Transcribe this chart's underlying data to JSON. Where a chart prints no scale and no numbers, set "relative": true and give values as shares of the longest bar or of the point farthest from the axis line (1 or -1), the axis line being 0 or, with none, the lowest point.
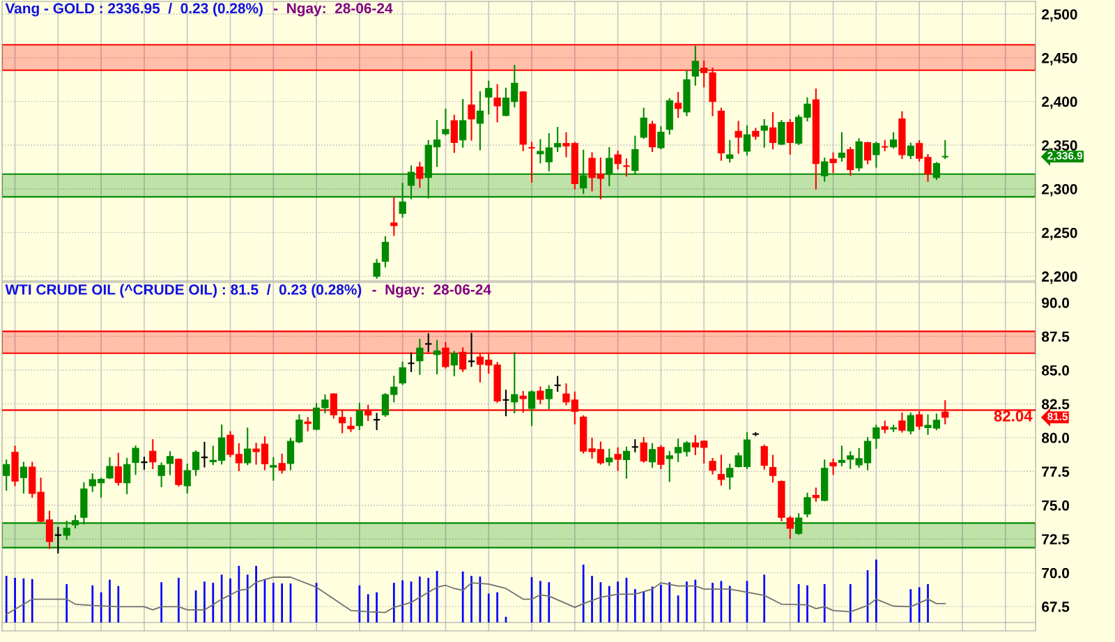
{
  "chart_data": [
    {
      "type": "candlestick",
      "title": "Vang - GOLD : 2336.95  /  0.23 (0.28%)",
      "subtitle": "-  Ngay:  28-06-24",
      "categories": [
        null,
        null,
        null,
        null,
        null,
        null,
        null,
        null,
        null,
        null,
        null,
        null,
        null,
        null,
        null,
        null,
        null,
        null,
        null,
        null,
        null,
        null,
        null,
        null,
        null,
        null,
        null,
        null,
        null,
        null,
        null,
        null,
        null,
        null,
        null,
        null,
        null,
        null,
        null,
        null,
        null,
        null,
        null,
        null,
        null,
        null,
        null,
        null,
        null,
        null,
        null,
        null,
        null,
        null,
        null,
        null,
        null,
        null,
        null,
        null,
        null,
        null,
        null,
        null,
        null,
        null,
        null,
        null,
        null,
        null,
        null,
        null,
        null,
        null,
        null,
        null,
        null,
        null,
        null,
        null,
        null,
        null,
        null,
        null,
        null,
        null,
        null,
        null,
        null,
        null,
        null,
        null,
        null,
        null,
        null,
        null,
        null,
        null,
        null,
        null,
        null,
        null,
        null,
        null,
        null,
        null,
        null,
        null,
        null,
        null,
        null,
        null,
        null,
        null,
        null,
        null,
        null,
        null,
        null,
        null
      ],
      "ohlc": [
        null,
        null,
        null,
        null,
        null,
        null,
        null,
        null,
        null,
        null,
        null,
        null,
        null,
        null,
        null,
        null,
        null,
        null,
        null,
        null,
        null,
        null,
        null,
        null,
        null,
        null,
        null,
        null,
        null,
        null,
        null,
        null,
        null,
        null,
        null,
        null,
        null,
        null,
        null,
        null,
        null,
        null,
        null,
        [
          2200,
          2219,
          2198,
          2215
        ],
        [
          2217,
          2245,
          2211,
          2239
        ],
        [
          2261,
          2290,
          2247,
          2258
        ],
        [
          2272,
          2306,
          2268,
          2285
        ],
        [
          2304,
          2326,
          2289,
          2319
        ],
        [
          2325,
          2330,
          2302,
          2312
        ],
        [
          2313,
          2355,
          2290,
          2350
        ],
        [
          2348,
          2378,
          2326,
          2356
        ],
        [
          2363,
          2391,
          2362,
          2368
        ],
        [
          2378,
          2384,
          2342,
          2353
        ],
        [
          2356,
          2402,
          2348,
          2378
        ],
        [
          2396,
          2457,
          2356,
          2380
        ],
        [
          2375,
          2411,
          2345,
          2389
        ],
        [
          2405,
          2423,
          2386,
          2415
        ],
        [
          2404,
          2419,
          2377,
          2395
        ],
        [
          2384,
          2415,
          2384,
          2404
        ],
        [
          2400,
          2441,
          2394,
          2421
        ],
        [
          2411,
          2411,
          2344,
          2351
        ],
        [
          2347,
          2353,
          2308,
          2347
        ],
        [
          2340,
          2356,
          2330,
          2343
        ],
        [
          2331,
          2363,
          2321,
          2347
        ],
        [
          2348,
          2370,
          2343,
          2352
        ],
        [
          2352,
          2364,
          2337,
          2349
        ],
        [
          2352,
          2353,
          2300,
          2306
        ],
        [
          2301,
          2344,
          2295,
          2315
        ],
        [
          2335,
          2341,
          2298,
          2313
        ],
        [
          2317,
          2335,
          2289,
          2312
        ],
        [
          2317,
          2347,
          2304,
          2335
        ],
        [
          2339,
          2343,
          2323,
          2329
        ],
        [
          2326,
          2334,
          2315,
          2326
        ],
        [
          2321,
          2360,
          2317,
          2345
        ],
        [
          2359,
          2392,
          2358,
          2381
        ],
        [
          2374,
          2377,
          2343,
          2348
        ],
        [
          2347,
          2371,
          2346,
          2365
        ],
        [
          2368,
          2403,
          2363,
          2401
        ],
        [
          2398,
          2410,
          2382,
          2392
        ],
        [
          2388,
          2435,
          2384,
          2425
        ],
        [
          2429,
          2463,
          2419,
          2446
        ],
        [
          2438,
          2446,
          2417,
          2433
        ],
        [
          2433,
          2438,
          2384,
          2400
        ],
        [
          2389,
          2392,
          2333,
          2341
        ],
        [
          2335,
          2355,
          2331,
          2339
        ],
        [
          2366,
          2377,
          2341,
          2359
        ],
        [
          2343,
          2372,
          2339,
          2362
        ],
        [
          2366,
          2369,
          2357,
          2360
        ],
        [
          2367,
          2379,
          2348,
          2372
        ],
        [
          2370,
          2387,
          2346,
          2353
        ],
        [
          2351,
          2378,
          2351,
          2376
        ],
        [
          2376,
          2379,
          2340,
          2353
        ],
        [
          2352,
          2384,
          2351,
          2382
        ],
        [
          2382,
          2404,
          2378,
          2397
        ],
        [
          2402,
          2414,
          2300,
          2329
        ],
        [
          2315,
          2335,
          2309,
          2331
        ],
        [
          2334,
          2341,
          2319,
          2330
        ],
        [
          2336,
          2364,
          2332,
          2341
        ],
        [
          2345,
          2347,
          2316,
          2322
        ],
        [
          2324,
          2357,
          2321,
          2354
        ],
        [
          2353,
          2353,
          2329,
          2333
        ],
        [
          2339,
          2353,
          2325,
          2352
        ],
        [
          2348,
          2355,
          2344,
          2348
        ],
        [
          2348,
          2364,
          2347,
          2356
        ],
        [
          2380,
          2388,
          2335,
          2339
        ],
        [
          2338,
          2352,
          2335,
          2349
        ],
        [
          2352,
          2355,
          2332,
          2335
        ],
        [
          2336,
          2339,
          2309,
          2317
        ],
        [
          2313,
          2330,
          2311,
          2329
        ],
        [
          2336.9,
          2355,
          2335,
          2336.9
        ],
        null,
        null,
        null,
        null,
        null,
        null,
        null,
        null,
        null,
        null
      ],
      "colors": [
        null,
        null,
        null,
        null,
        null,
        null,
        null,
        null,
        null,
        null,
        null,
        null,
        null,
        null,
        null,
        null,
        null,
        null,
        null,
        null,
        null,
        null,
        null,
        null,
        null,
        null,
        null,
        null,
        null,
        null,
        null,
        null,
        null,
        null,
        null,
        null,
        null,
        null,
        null,
        null,
        null,
        null,
        null,
        "#008a00",
        "#008a00",
        "#ff0000",
        "#008a00",
        "#008a00",
        "#ff0000",
        "#008a00",
        "#008a00",
        "#008a00",
        "#ff0000",
        "#008a00",
        "#ff0000",
        "#008a00",
        "#008a00",
        "#ff0000",
        "#008a00",
        "#008a00",
        "#ff0000",
        "#ff0000",
        "#008a00",
        "#008a00",
        "#008a00",
        "#ff0000",
        "#ff0000",
        "#008a00",
        "#ff0000",
        "#ff0000",
        "#008a00",
        "#ff0000",
        "#ff0000",
        "#008a00",
        "#008a00",
        "#ff0000",
        "#008a00",
        "#008a00",
        "#ff0000",
        "#008a00",
        "#008a00",
        "#ff0000",
        "#ff0000",
        "#ff0000",
        "#008a00",
        "#ff0000",
        "#008a00",
        "#ff0000",
        "#008a00",
        "#ff0000",
        "#008a00",
        "#ff0000",
        "#008a00",
        "#008a00",
        "#ff0000",
        "#008a00",
        "#ff0000",
        "#008a00",
        "#ff0000",
        "#008a00",
        "#ff0000",
        "#008a00",
        "#ff0000",
        "#008a00",
        "#ff0000",
        "#008a00",
        "#ff0000",
        "#ff0000",
        "#008a00",
        "#008a00",
        null,
        null,
        null,
        null,
        null,
        null,
        null,
        null,
        null,
        null
      ],
      "ylim": [
        2194.7,
        2514.5
      ],
      "yticks": [
        {
          "value": 2200,
          "label": "2,200"
        },
        {
          "value": 2250,
          "label": "2,250"
        },
        {
          "value": 2300,
          "label": "2,300"
        },
        {
          "value": 2350,
          "label": "2,350"
        },
        {
          "value": 2400,
          "label": "2,400"
        },
        {
          "value": 2450,
          "label": "2,450"
        },
        {
          "value": 2500,
          "label": "2,500"
        }
      ],
      "grid": true,
      "tick_labels": "y",
      "bands": [
        {
          "axis": "y",
          "from": 2435.7,
          "to": 2464.8,
          "color": "#ff0000"
        },
        {
          "axis": "y",
          "from": 2290.9,
          "to": 2316.9,
          "color": "#008a00"
        }
      ],
      "annotations": [
        "2,336.9"
      ]
    },
    {
      "type": "candlestick",
      "title": "WTI CRUDE OIL (^CRUDE OIL) : 81.5  /  0.23 (0.28%)",
      "subtitle": "-  Ngay:  28-06-24",
      "categories": [
        null,
        null,
        null,
        null,
        null,
        null,
        null,
        null,
        null,
        null,
        null,
        null,
        null,
        null,
        null,
        null,
        null,
        null,
        null,
        null,
        null,
        null,
        null,
        null,
        null,
        null,
        null,
        null,
        null,
        null,
        null,
        null,
        null,
        null,
        null,
        null,
        null,
        null,
        null,
        null,
        null,
        null,
        null,
        null,
        null,
        null,
        null,
        null,
        null,
        null,
        null,
        null,
        null,
        null,
        null,
        null,
        null,
        null,
        null,
        null,
        null,
        null,
        null,
        null,
        null,
        null,
        null,
        null,
        null,
        null,
        null,
        null,
        null,
        null,
        null,
        null,
        null,
        null,
        null,
        null,
        null,
        null,
        null,
        null,
        null,
        null,
        null,
        null,
        null,
        null,
        null,
        null,
        null,
        null,
        null,
        null,
        null,
        null,
        null,
        null,
        null,
        null,
        null,
        null,
        null,
        null,
        null,
        null,
        null,
        null,
        null,
        null,
        null,
        null,
        null,
        null,
        null,
        null,
        null,
        null
      ],
      "ohlc": [
        [
          77.2,
          78.33,
          76.13,
          78.02
        ],
        [
          78.92,
          79.35,
          76.47,
          76.78
        ],
        [
          77.04,
          78.16,
          75.92,
          77.82
        ],
        [
          77.82,
          78.16,
          75.61,
          75.87
        ],
        [
          75.96,
          76.99,
          73.8,
          73.8
        ],
        [
          73.92,
          74.54,
          71.82,
          72.31
        ],
        [
          72.79,
          73.34,
          71.48,
          72.79
        ],
        [
          72.77,
          73.8,
          72.48,
          73.3
        ],
        [
          73.55,
          74.23,
          73.34,
          73.86
        ],
        [
          74.1,
          76.65,
          73.63,
          76.21
        ],
        [
          76.44,
          77.3,
          76.04,
          76.89
        ],
        [
          76.65,
          76.99,
          75.61,
          76.92
        ],
        [
          77.02,
          78.5,
          76.99,
          77.88
        ],
        [
          77.85,
          78.83,
          76.51,
          76.68
        ],
        [
          76.65,
          78.45,
          75.87,
          78.02
        ],
        [
          78.16,
          79.37,
          77.3,
          79.21
        ],
        [
          78.18,
          78.54,
          77.68,
          78.18
        ],
        [
          79.0,
          79.83,
          77.73,
          78.2
        ],
        [
          77.2,
          78.11,
          76.39,
          77.94
        ],
        [
          78.09,
          78.95,
          77.28,
          78.61
        ],
        [
          78.4,
          78.4,
          76.44,
          76.52
        ],
        [
          76.44,
          78.02,
          75.92,
          77.57
        ],
        [
          77.64,
          79.0,
          77.23,
          78.92
        ],
        [
          78.54,
          79.64,
          77.85,
          78.54
        ],
        [
          78.21,
          79.35,
          78.02,
          78.32
        ],
        [
          78.32,
          80.92,
          78.07,
          79.99
        ],
        [
          80.18,
          80.43,
          78.61,
          78.76
        ],
        [
          78.76,
          79.54,
          77.57,
          78.14
        ],
        [
          78.14,
          80.69,
          78.02,
          79.16
        ],
        [
          79.16,
          79.57,
          78.06,
          78.97
        ],
        [
          79.52,
          80.04,
          77.64,
          78.06
        ],
        [
          77.82,
          78.5,
          76.87,
          77.94
        ],
        [
          78.09,
          78.76,
          77.39,
          77.59
        ],
        [
          78.09,
          79.95,
          77.64,
          79.73
        ],
        [
          79.69,
          81.67,
          79.64,
          81.31
        ],
        [
          81.16,
          81.47,
          80.52,
          81.04
        ],
        [
          80.61,
          82.53,
          80.61,
          82.19
        ],
        [
          82.21,
          83.15,
          81.86,
          82.79
        ],
        [
          83.24,
          83.24,
          81.47,
          81.69
        ],
        [
          81.5,
          81.98,
          80.38,
          81.09
        ],
        [
          80.85,
          81.47,
          80.47,
          80.66
        ],
        [
          80.88,
          82.53,
          80.61,
          81.97
        ],
        [
          81.97,
          82.38,
          81.29,
          81.67
        ],
        [
          81.33,
          81.78,
          80.61,
          81.33
        ],
        [
          81.69,
          83.24,
          81.6,
          83.19
        ],
        [
          83.19,
          84.53,
          82.67,
          83.74
        ],
        [
          84.05,
          85.57,
          83.95,
          85.17
        ],
        [
          85.5,
          86.25,
          84.91,
          85.5
        ],
        [
          85.69,
          87.27,
          84.7,
          86.63
        ],
        [
          86.94,
          87.67,
          86.37,
          86.94
        ],
        [
          86.15,
          87.18,
          84.74,
          86.43
        ],
        [
          86.63,
          87.01,
          85.17,
          85.26
        ],
        [
          85.38,
          86.37,
          84.6,
          86.24
        ],
        [
          86.32,
          86.63,
          84.91,
          85.08
        ],
        [
          85.65,
          87.7,
          85.29,
          85.65
        ],
        [
          85.98,
          86.15,
          84.14,
          85.43
        ],
        [
          85.74,
          86.2,
          84.79,
          85.38
        ],
        [
          85.38,
          85.55,
          82.64,
          82.72
        ],
        [
          82.79,
          83.5,
          81.64,
          82.79
        ],
        [
          82.64,
          86.29,
          81.85,
          83.19
        ],
        [
          83.07,
          83.4,
          81.9,
          82.88
        ],
        [
          82.16,
          83.45,
          80.92,
          83.4
        ],
        [
          83.45,
          83.74,
          82.53,
          82.84
        ],
        [
          82.88,
          83.83,
          82.16,
          83.58
        ],
        [
          83.88,
          84.51,
          83.45,
          83.88
        ],
        [
          83.24,
          83.96,
          82.45,
          82.64
        ],
        [
          82.79,
          83.36,
          81.04,
          81.95
        ],
        [
          81.52,
          81.6,
          78.88,
          79.0
        ],
        [
          79.18,
          79.95,
          78.5,
          78.97
        ],
        [
          79.12,
          79.66,
          78.06,
          78.14
        ],
        [
          78.2,
          79.12,
          77.97,
          78.5
        ],
        [
          78.76,
          79.23,
          77.59,
          78.4
        ],
        [
          78.37,
          79.28,
          77.02,
          79.0
        ],
        [
          79.31,
          79.83,
          78.97,
          79.31
        ],
        [
          79.62,
          80.0,
          78.2,
          78.28
        ],
        [
          78.2,
          79.54,
          77.82,
          79.12
        ],
        [
          79.28,
          79.4,
          77.73,
          78.02
        ],
        [
          78.45,
          78.95,
          76.78,
          78.66
        ],
        [
          78.88,
          79.88,
          78.25,
          79.28
        ],
        [
          78.97,
          79.69,
          78.66,
          79.62
        ],
        [
          79.62,
          80.14,
          78.76,
          79.31
        ],
        [
          79.74,
          79.74,
          78.14,
          79.28
        ],
        [
          78.25,
          78.45,
          77.33,
          77.59
        ],
        [
          77.28,
          78.68,
          76.51,
          76.9
        ],
        [
          77.08,
          78.02,
          76.21,
          77.73
        ],
        [
          77.85,
          78.83,
          77.85,
          78.66
        ],
        [
          77.85,
          80.35,
          77.73,
          79.83
        ],
        [
          80.26,
          80.35,
          80.17,
          80.26
        ],
        [
          79.35,
          79.43,
          77.68,
          77.94
        ],
        [
          77.8,
          78.68,
          76.73,
          77.2
        ],
        [
          76.77,
          76.78,
          73.86,
          74.1
        ],
        [
          74.06,
          74.15,
          72.56,
          73.29
        ],
        [
          72.91,
          74.35,
          72.86,
          74.06
        ],
        [
          74.35,
          75.87,
          74.15,
          75.56
        ],
        [
          75.73,
          76.25,
          75.3,
          75.56
        ],
        [
          75.35,
          78.33,
          75.35,
          77.73
        ],
        [
          78.14,
          78.4,
          77.3,
          77.9
        ],
        [
          78.16,
          79.35,
          77.94,
          78.32
        ],
        [
          78.4,
          78.94,
          77.73,
          78.66
        ],
        [
          77.99,
          79.18,
          77.82,
          78.45
        ],
        [
          78.14,
          80.0,
          77.64,
          79.73
        ],
        [
          79.95,
          80.9,
          79.23,
          80.73
        ],
        [
          80.81,
          81.21,
          80.38,
          80.61
        ],
        [
          80.64,
          80.9,
          80.47,
          80.73
        ],
        [
          81.24,
          81.81,
          80.43,
          80.55
        ],
        [
          80.5,
          81.81,
          80.3,
          81.64
        ],
        [
          81.69,
          81.9,
          80.64,
          80.85
        ],
        [
          80.74,
          81.67,
          80.26,
          80.92
        ],
        [
          80.71,
          81.73,
          80.61,
          81.29
        ],
        [
          81.9,
          82.72,
          81.04,
          81.5
        ],
        null,
        null,
        null,
        null,
        null,
        null,
        null,
        null,
        null,
        null
      ],
      "colors": [
        "#008a00",
        "#ff0000",
        "#008a00",
        "#ff0000",
        "#ff0000",
        "#ff0000",
        "#000000",
        "#008a00",
        "#008a00",
        "#008a00",
        "#008a00",
        "#008a00",
        "#008a00",
        "#ff0000",
        "#008a00",
        "#008a00",
        "#000000",
        "#ff0000",
        "#008a00",
        "#008a00",
        "#ff0000",
        "#008a00",
        "#008a00",
        "#000000",
        "#008a00",
        "#008a00",
        "#ff0000",
        "#ff0000",
        "#008a00",
        "#ff0000",
        "#ff0000",
        "#008a00",
        "#ff0000",
        "#008a00",
        "#008a00",
        "#ff0000",
        "#008a00",
        "#008a00",
        "#ff0000",
        "#ff0000",
        "#ff0000",
        "#008a00",
        "#ff0000",
        "#000000",
        "#008a00",
        "#008a00",
        "#008a00",
        "#000000",
        "#008a00",
        "#000000",
        "#008a00",
        "#ff0000",
        "#008a00",
        "#ff0000",
        "#000000",
        "#ff0000",
        "#ff0000",
        "#ff0000",
        "#000000",
        "#008a00",
        "#ff0000",
        "#008a00",
        "#ff0000",
        "#008a00",
        "#000000",
        "#ff0000",
        "#ff0000",
        "#ff0000",
        "#ff0000",
        "#ff0000",
        "#008a00",
        "#ff0000",
        "#008a00",
        "#000000",
        "#ff0000",
        "#008a00",
        "#ff0000",
        "#008a00",
        "#008a00",
        "#008a00",
        "#ff0000",
        "#ff0000",
        "#ff0000",
        "#ff0000",
        "#008a00",
        "#008a00",
        "#008a00",
        "#000000",
        "#ff0000",
        "#ff0000",
        "#ff0000",
        "#ff0000",
        "#008a00",
        "#008a00",
        "#ff0000",
        "#008a00",
        "#ff0000",
        "#008a00",
        "#008a00",
        "#008a00",
        "#008a00",
        "#008a00",
        "#ff0000",
        "#008a00",
        "#ff0000",
        "#008a00",
        "#ff0000",
        "#008a00",
        "#008a00",
        "#ff0000",
        null,
        null,
        null,
        null,
        null,
        null,
        null,
        null,
        null,
        null
      ],
      "ylim": [
        65.7,
        91.5
      ],
      "yticks": [
        {
          "value": 67.5,
          "label": "67.5"
        },
        {
          "value": 70,
          "label": "70.0"
        },
        {
          "value": 72.5,
          "label": "72.5"
        },
        {
          "value": 75,
          "label": "75.0"
        },
        {
          "value": 77.5,
          "label": "77.5"
        },
        {
          "value": 80,
          "label": "80.0"
        },
        {
          "value": 82.5,
          "label": "82.5"
        },
        {
          "value": 85,
          "label": "85.0"
        },
        {
          "value": 87.5,
          "label": "87.5"
        },
        {
          "value": 90,
          "label": "90.0"
        }
      ],
      "grid": true,
      "tick_labels": "y",
      "ref_lines": [
        {
          "axis": "y",
          "value": 82.04,
          "label": "82.04",
          "color": "#ff0000"
        }
      ],
      "bands": [
        {
          "axis": "y",
          "from": 86.25,
          "to": 87.87,
          "color": "#ff0000"
        },
        {
          "axis": "y",
          "from": 71.86,
          "to": 73.68,
          "color": "#008a00"
        }
      ],
      "annotations": [
        "81.5"
      ]
    },
    {
      "type": "bar",
      "relative": true,
      "tick_labels": false,
      "categories": [
        null,
        null,
        null,
        null,
        null,
        null,
        null,
        null,
        null,
        null,
        null,
        null,
        null,
        null,
        null,
        null,
        null,
        null,
        null,
        null,
        null,
        null,
        null,
        null,
        null,
        null,
        null,
        null,
        null,
        null,
        null,
        null,
        null,
        null,
        null,
        null,
        null,
        null,
        null,
        null,
        null,
        null,
        null,
        null,
        null,
        null,
        null,
        null,
        null,
        null,
        null,
        null,
        null,
        null,
        null,
        null,
        null,
        null,
        null,
        null,
        null,
        null,
        null,
        null,
        null,
        null,
        null,
        null,
        null,
        null,
        null,
        null,
        null,
        null,
        null,
        null,
        null,
        null,
        null,
        null,
        null,
        null,
        null,
        null,
        null,
        null,
        null,
        null,
        null,
        null,
        null,
        null,
        null,
        null,
        null,
        null,
        null,
        null,
        null,
        null,
        null,
        null,
        null,
        null,
        null,
        null,
        null,
        null,
        null,
        null,
        null,
        null,
        null,
        null,
        null,
        null,
        null,
        null,
        null,
        null
      ],
      "series": [
        {
          "type": "bar",
          "color": "#0000ff",
          "values": [
            0.74,
            0.71,
            0.7,
            0.69,
            0,
            0,
            0,
            0.61,
            0,
            0,
            0.59,
            0.48,
            0.68,
            0.58,
            0,
            0,
            0,
            0,
            0.64,
            0,
            0.71,
            0,
            0.51,
            0.65,
            0.63,
            0.76,
            0.7,
            0.9,
            0.76,
            0.9,
            0.69,
            0.63,
            0.62,
            0.62,
            0,
            0,
            0.63,
            0,
            0,
            0,
            0,
            0.59,
            0.45,
            0.48,
            0,
            0.63,
            0.67,
            0.65,
            0.73,
            0.71,
            0.82,
            0,
            0,
            0.81,
            0.74,
            0.73,
            0.46,
            0.48,
            0.09,
            0,
            0,
            0.72,
            0.66,
            0.64,
            0,
            0,
            0,
            0.92,
            0.74,
            0.64,
            0.58,
            0.65,
            0.71,
            0.53,
            0.49,
            0.57,
            0.6,
            0.64,
            0.43,
            0.65,
            0.68,
            0,
            0.63,
            0.66,
            0.58,
            0,
            0.66,
            0,
            0.76,
            0,
            0,
            0,
            0.61,
            0.59,
            0,
            0.61,
            0,
            0,
            0.61,
            0,
            0.83,
            1,
            0,
            0,
            0,
            0.53,
            0.56,
            0.61,
            0,
            0,
            null,
            null,
            null,
            null,
            null,
            null,
            null,
            null,
            null,
            null
          ]
        },
        {
          "type": "line",
          "color": "#707070",
          "values": [
            0.13,
            null,
            null,
            0.37,
            null,
            null,
            null,
            0.37,
            0.29,
            null,
            0.27,
            null,
            null,
            0.25,
            null,
            null,
            0.25,
            0.2,
            0.25,
            null,
            0.25,
            0.2,
            null,
            0.2,
            null,
            0.37,
            null,
            0.51,
            0.53,
            0.64,
            null,
            0.72,
            null,
            0.72,
            null,
            null,
            0.56,
            null,
            null,
            null,
            0.19,
            null,
            0.17,
            null,
            0.16,
            0.24,
            null,
            0.32,
            null,
            null,
            0.56,
            0.59,
            0.54,
            0.51,
            0.63,
            null,
            0.61,
            null,
            0.54,
            null,
            0.37,
            0.37,
            0.44,
            0.42,
            null,
            0.3,
            0.24,
            0.3,
            null,
            0.4,
            null,
            0.45,
            null,
            0.45,
            null,
            0.53,
            0.63,
            null,
            0.58,
            null,
            0.58,
            0.53,
            null,
            null,
            0.53,
            null,
            null,
            null,
            0.43,
            null,
            0.29,
            null,
            null,
            0.28,
            0.22,
            0.25,
            0.19,
            null,
            0.17,
            null,
            0.27,
            0.37,
            null,
            0.26,
            null,
            0.25,
            null,
            0.37,
            0.3,
            0.3,
            null,
            null,
            null,
            null,
            null,
            null,
            null,
            null,
            null,
            null
          ]
        }
      ]
    }
  ]
}
